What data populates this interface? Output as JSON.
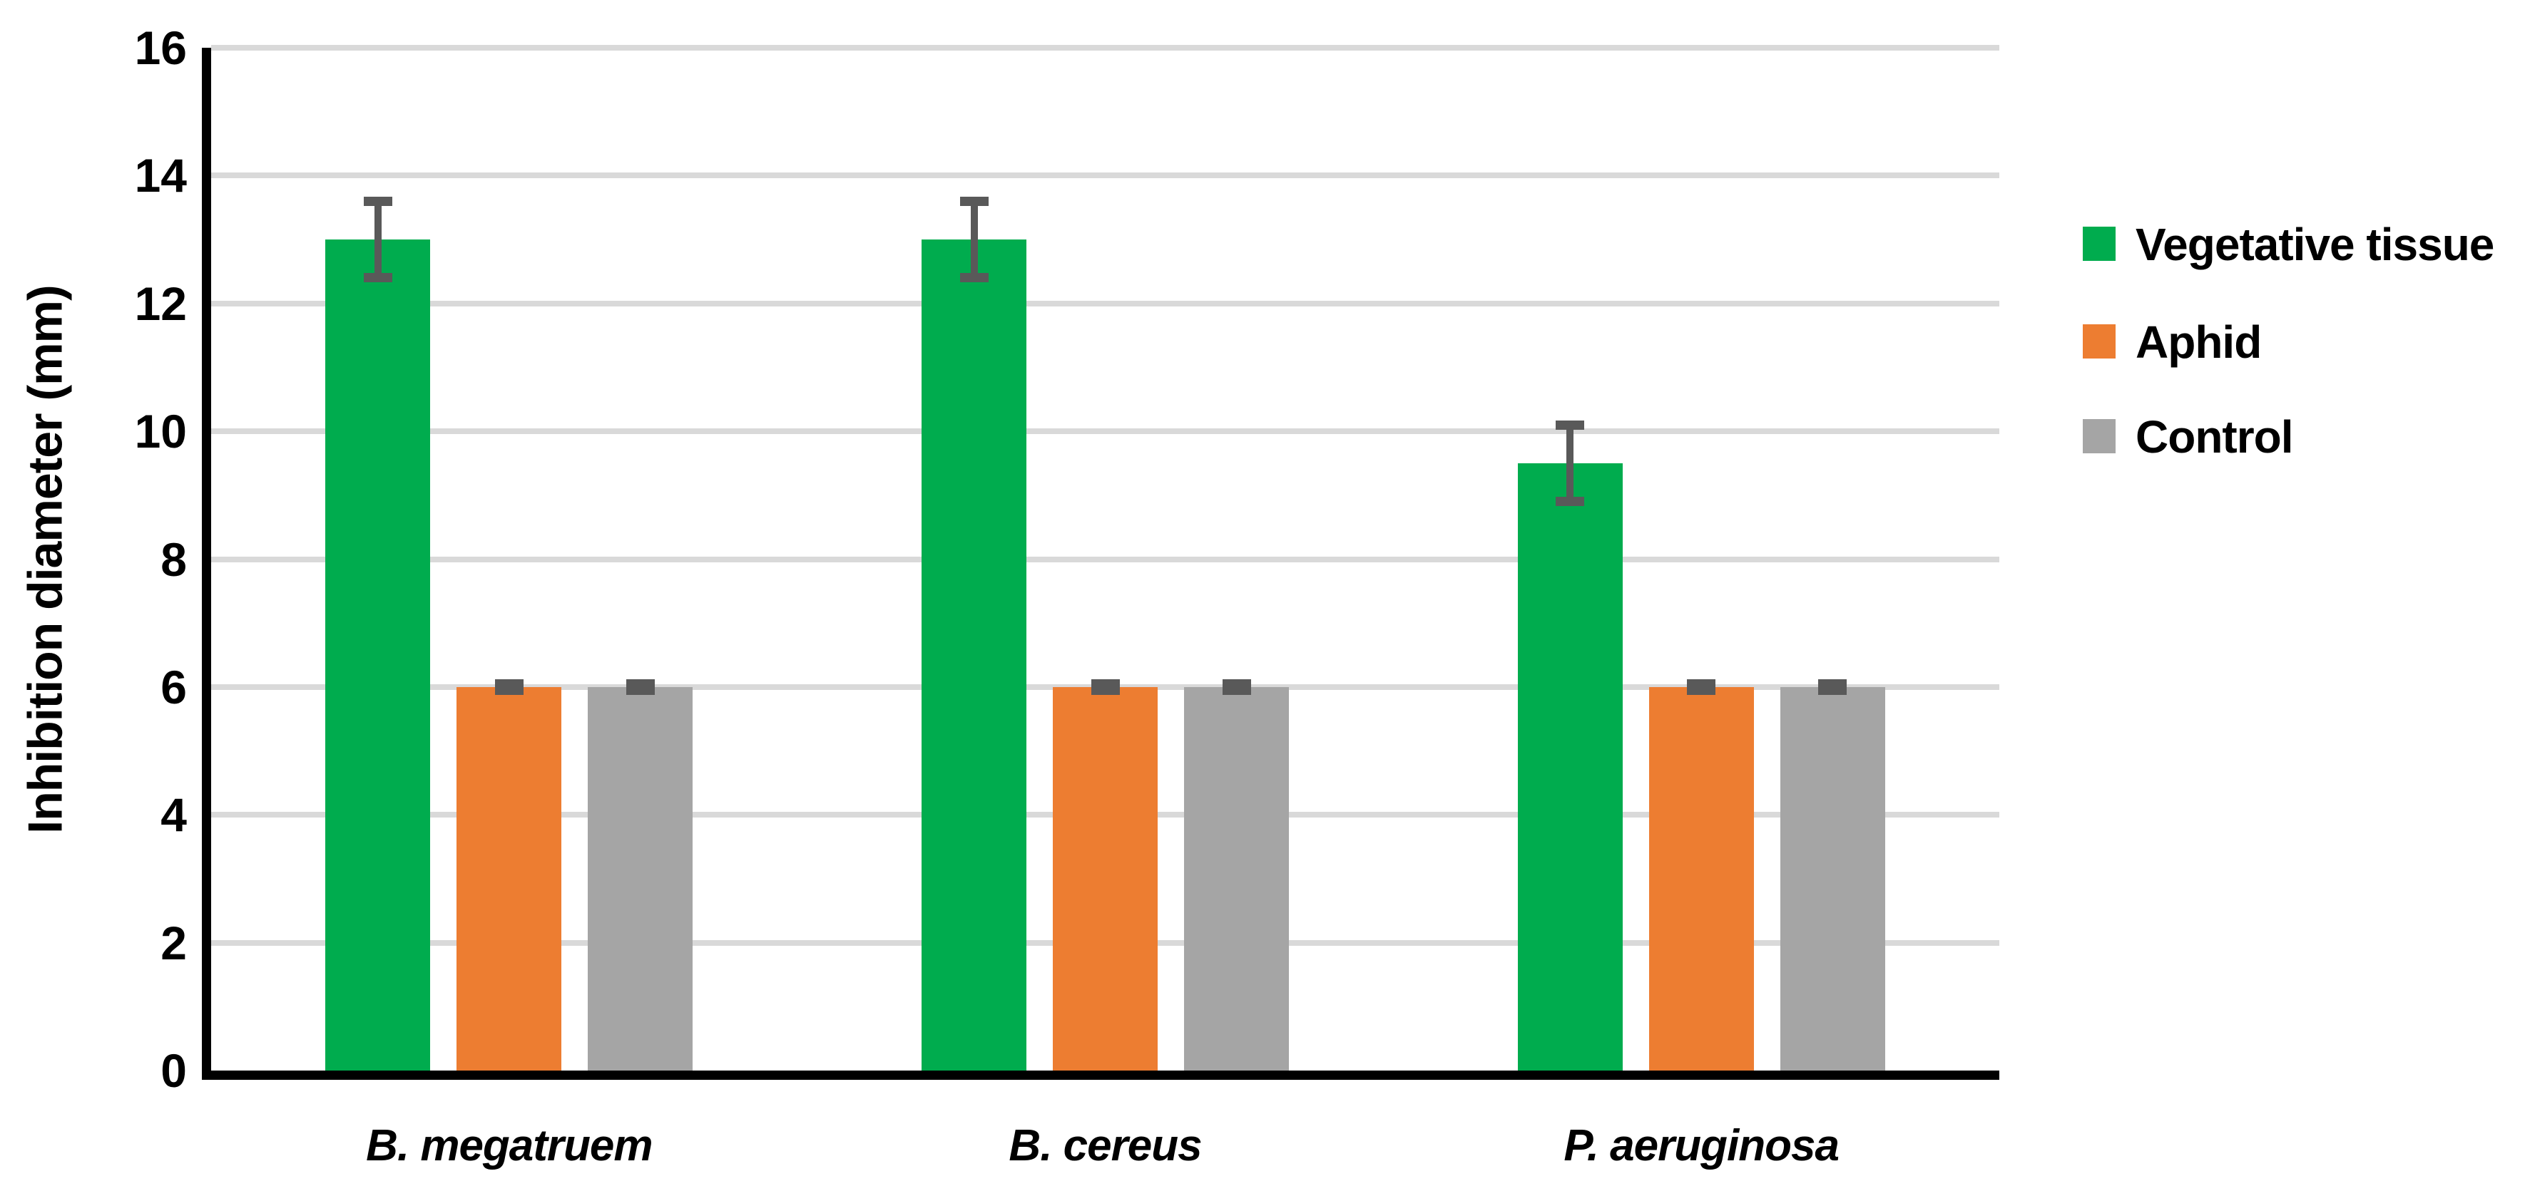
{
  "figure": {
    "background": "#ffffff",
    "text_color": "#000000"
  },
  "chart_data": {
    "type": "bar",
    "title": "",
    "xlabel": "",
    "ylabel": "Inhibition diameter (mm)",
    "ylim": [
      0,
      16
    ],
    "yticks": [
      0,
      2,
      4,
      6,
      8,
      10,
      12,
      14,
      16
    ],
    "grid": "horizontal",
    "gridline_color": "#D9D9D9",
    "axis_color": "#000000",
    "error_bar_color": "#595959",
    "legend_position": "right",
    "categories": [
      "B. megatruem",
      "B. cereus",
      "P. aeruginosa"
    ],
    "series": [
      {
        "name": "Vegetative tissue",
        "color": "#00AC4E",
        "values": [
          13,
          13,
          9.5
        ],
        "errors": [
          0.6,
          0.6,
          0.6
        ]
      },
      {
        "name": "Aphid",
        "color": "#ED7D31",
        "values": [
          6,
          6,
          6
        ],
        "errors": [
          0.05,
          0.05,
          0.05
        ]
      },
      {
        "name": "Control",
        "color": "#A5A5A5",
        "values": [
          6,
          6,
          6
        ],
        "errors": [
          0.05,
          0.05,
          0.05
        ]
      }
    ]
  }
}
